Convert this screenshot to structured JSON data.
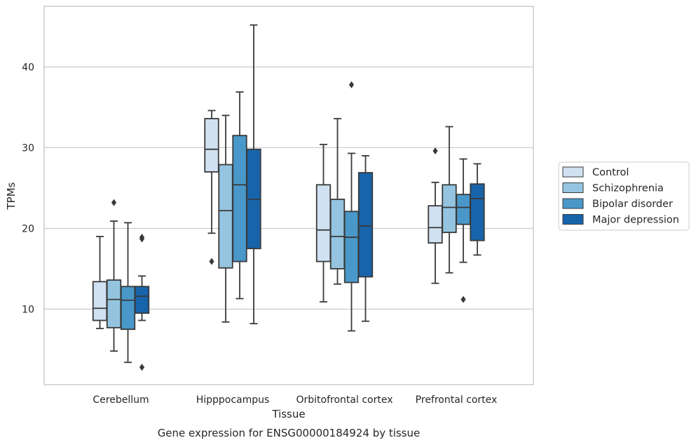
{
  "chart_data": {
    "type": "box",
    "caption": "Gene expression for ENSG00000184924 by tissue",
    "xlabel": "Tissue",
    "ylabel": "TPMs",
    "ylim": [
      0.7,
      47.5
    ],
    "yticks": [
      10,
      20,
      30,
      40
    ],
    "grid": "horizontal",
    "legend_position": "right",
    "categories": [
      "Cerebellum",
      "Hipppocampus",
      "Orbitofrontal cortex",
      "Prefrontal cortex"
    ],
    "series": [
      {
        "name": "Control",
        "color": "#d0e1f2",
        "boxes": [
          {
            "whislo": 7.6,
            "q1": 8.6,
            "med": 10.1,
            "q3": 13.4,
            "whishi": 19.0,
            "fliers": []
          },
          {
            "whislo": 19.4,
            "q1": 27.0,
            "med": 29.8,
            "q3": 33.6,
            "whishi": 34.6,
            "fliers": [
              15.9
            ]
          },
          {
            "whislo": 10.9,
            "q1": 15.9,
            "med": 19.8,
            "q3": 25.4,
            "whishi": 30.4,
            "fliers": []
          },
          {
            "whislo": 13.2,
            "q1": 18.2,
            "med": 20.1,
            "q3": 22.8,
            "whishi": 25.7,
            "fliers": [
              29.6
            ]
          }
        ]
      },
      {
        "name": "Schizophrenia",
        "color": "#94c4df",
        "boxes": [
          {
            "whislo": 4.8,
            "q1": 7.7,
            "med": 11.2,
            "q3": 13.6,
            "whishi": 20.9,
            "fliers": [
              23.2
            ]
          },
          {
            "whislo": 8.4,
            "q1": 15.1,
            "med": 22.2,
            "q3": 27.9,
            "whishi": 34.0,
            "fliers": []
          },
          {
            "whislo": 13.1,
            "q1": 15.0,
            "med": 19.0,
            "q3": 23.6,
            "whishi": 33.6,
            "fliers": []
          },
          {
            "whislo": 14.5,
            "q1": 19.5,
            "med": 22.6,
            "q3": 25.4,
            "whishi": 32.6,
            "fliers": []
          }
        ]
      },
      {
        "name": "Bipolar disorder",
        "color": "#4a98c9",
        "boxes": [
          {
            "whislo": 3.4,
            "q1": 7.5,
            "med": 11.1,
            "q3": 12.8,
            "whishi": 20.7,
            "fliers": []
          },
          {
            "whislo": 11.3,
            "q1": 15.9,
            "med": 25.4,
            "q3": 31.5,
            "whishi": 36.9,
            "fliers": []
          },
          {
            "whislo": 7.3,
            "q1": 13.3,
            "med": 18.9,
            "q3": 22.1,
            "whishi": 29.3,
            "fliers": [
              37.8
            ]
          },
          {
            "whislo": 15.8,
            "q1": 20.5,
            "med": 22.6,
            "q3": 24.2,
            "whishi": 28.6,
            "fliers": [
              11.2
            ]
          }
        ]
      },
      {
        "name": "Major depression",
        "color": "#1764ab",
        "boxes": [
          {
            "whislo": 8.6,
            "q1": 9.5,
            "med": 11.6,
            "q3": 12.8,
            "whishi": 14.1,
            "fliers": [
              2.8,
              18.7,
              18.9
            ]
          },
          {
            "whislo": 8.2,
            "q1": 17.5,
            "med": 23.6,
            "q3": 29.8,
            "whishi": 45.2,
            "fliers": []
          },
          {
            "whislo": 8.5,
            "q1": 14.0,
            "med": 20.3,
            "q3": 26.9,
            "whishi": 29.0,
            "fliers": []
          },
          {
            "whislo": 16.7,
            "q1": 18.5,
            "med": 23.7,
            "q3": 25.5,
            "whishi": 28.0,
            "fliers": []
          }
        ]
      }
    ]
  }
}
